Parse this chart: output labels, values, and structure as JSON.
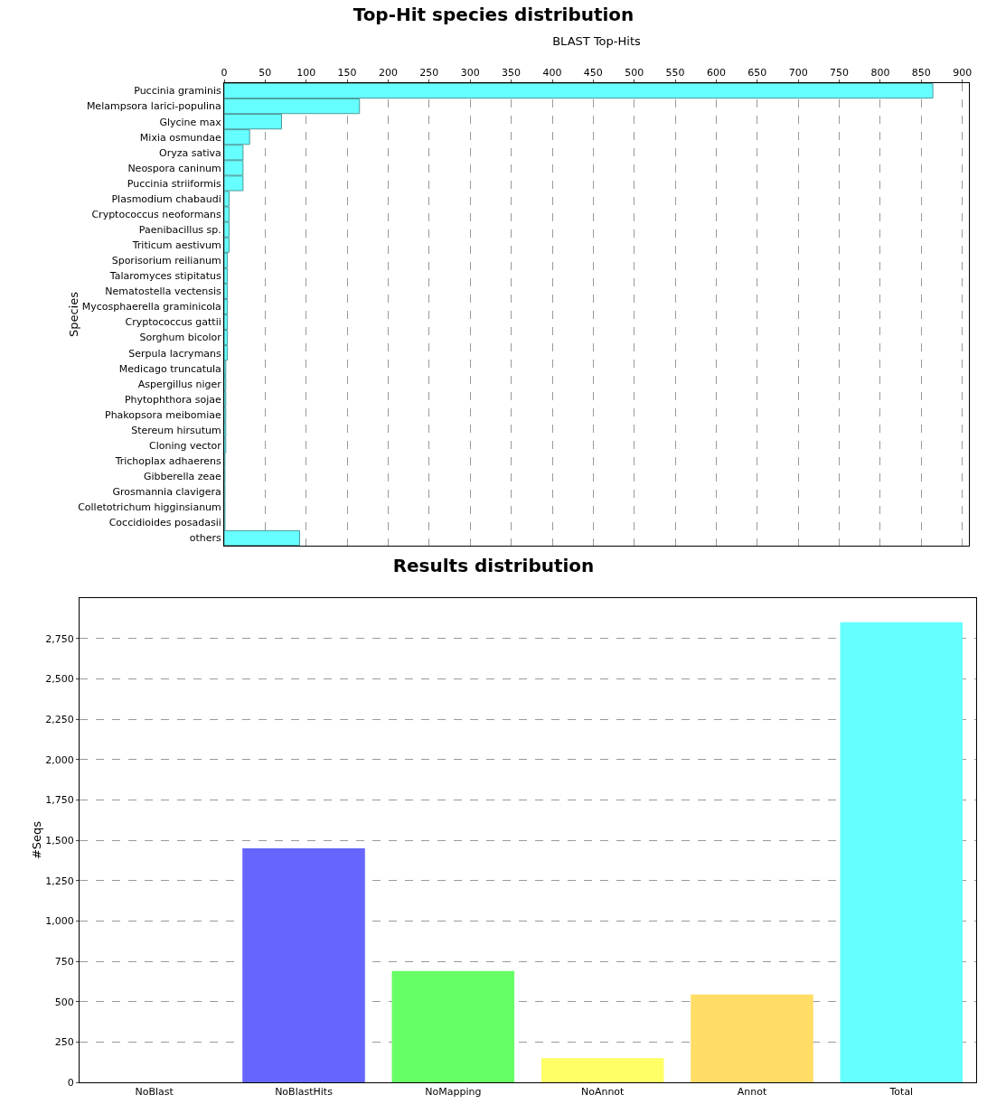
{
  "chart_data": [
    {
      "type": "bar",
      "title": "Top-Hit species distribution",
      "xlabel": "BLAST Top-Hits",
      "ylabel": "Species",
      "orientation": "horizontal",
      "categories": [
        "Puccinia graminis",
        "Melampsora larici-populina",
        "Glycine max",
        "Mixia osmundae",
        "Oryza sativa",
        "Neospora caninum",
        "Puccinia striiformis",
        "Plasmodium chabaudi",
        "Cryptococcus neoformans",
        "Paenibacillus sp.",
        "Triticum aestivum",
        "Sporisorium reilianum",
        "Talaromyces stipitatus",
        "Nematostella vectensis",
        "Mycosphaerella graminicola",
        "Cryptococcus gattii",
        "Sorghum bicolor",
        "Serpula lacrymans",
        "Medicago truncatula",
        "Aspergillus niger",
        "Phytophthora sojae",
        "Phakopsora meibomiae",
        "Stereum hirsutum",
        "Cloning vector",
        "Trichoplax adhaerens",
        "Gibberella zeae",
        "Grosmannia clavigera",
        "Colletotrichum higginsianum",
        "Coccidioides posadasii",
        "others"
      ],
      "values": [
        864,
        165,
        70,
        31,
        23,
        23,
        23,
        6,
        6,
        6,
        6,
        4,
        4,
        4,
        4,
        4,
        4,
        4,
        2,
        2,
        2,
        2,
        2,
        2,
        1,
        1,
        1,
        1,
        1,
        92
      ],
      "color": "#66ffff",
      "xlim": [
        0,
        908
      ],
      "xticks": [
        0,
        50,
        100,
        150,
        200,
        250,
        300,
        350,
        400,
        450,
        500,
        550,
        600,
        650,
        700,
        750,
        800,
        850,
        900
      ],
      "grid": "x",
      "legend": false
    },
    {
      "type": "bar",
      "title": "Results distribution",
      "ylabel": "#Seqs",
      "categories": [
        "NoBlast",
        "NoBlastHits",
        "NoMapping",
        "NoAnnot",
        "Annot",
        "Total"
      ],
      "values": [
        0,
        1450,
        690,
        150,
        545,
        2850
      ],
      "colors": [
        "#6666ff",
        "#6666ff",
        "#66ff66",
        "#ffff66",
        "#ffdd66",
        "#66ffff"
      ],
      "ylim": [
        0,
        3000
      ],
      "yticks": [
        0,
        250,
        500,
        750,
        {
          "value": 1000,
          "label": "1,000"
        },
        {
          "value": 1250,
          "label": "1,250"
        },
        {
          "value": 1500,
          "label": "1,500"
        },
        {
          "value": 1750,
          "label": "1,750"
        },
        {
          "value": 2000,
          "label": "2,000"
        },
        {
          "value": 2250,
          "label": "2,250"
        },
        {
          "value": 2500,
          "label": "2,500"
        },
        {
          "value": 2750,
          "label": "2,750"
        }
      ],
      "grid": "y",
      "legend": false
    }
  ]
}
